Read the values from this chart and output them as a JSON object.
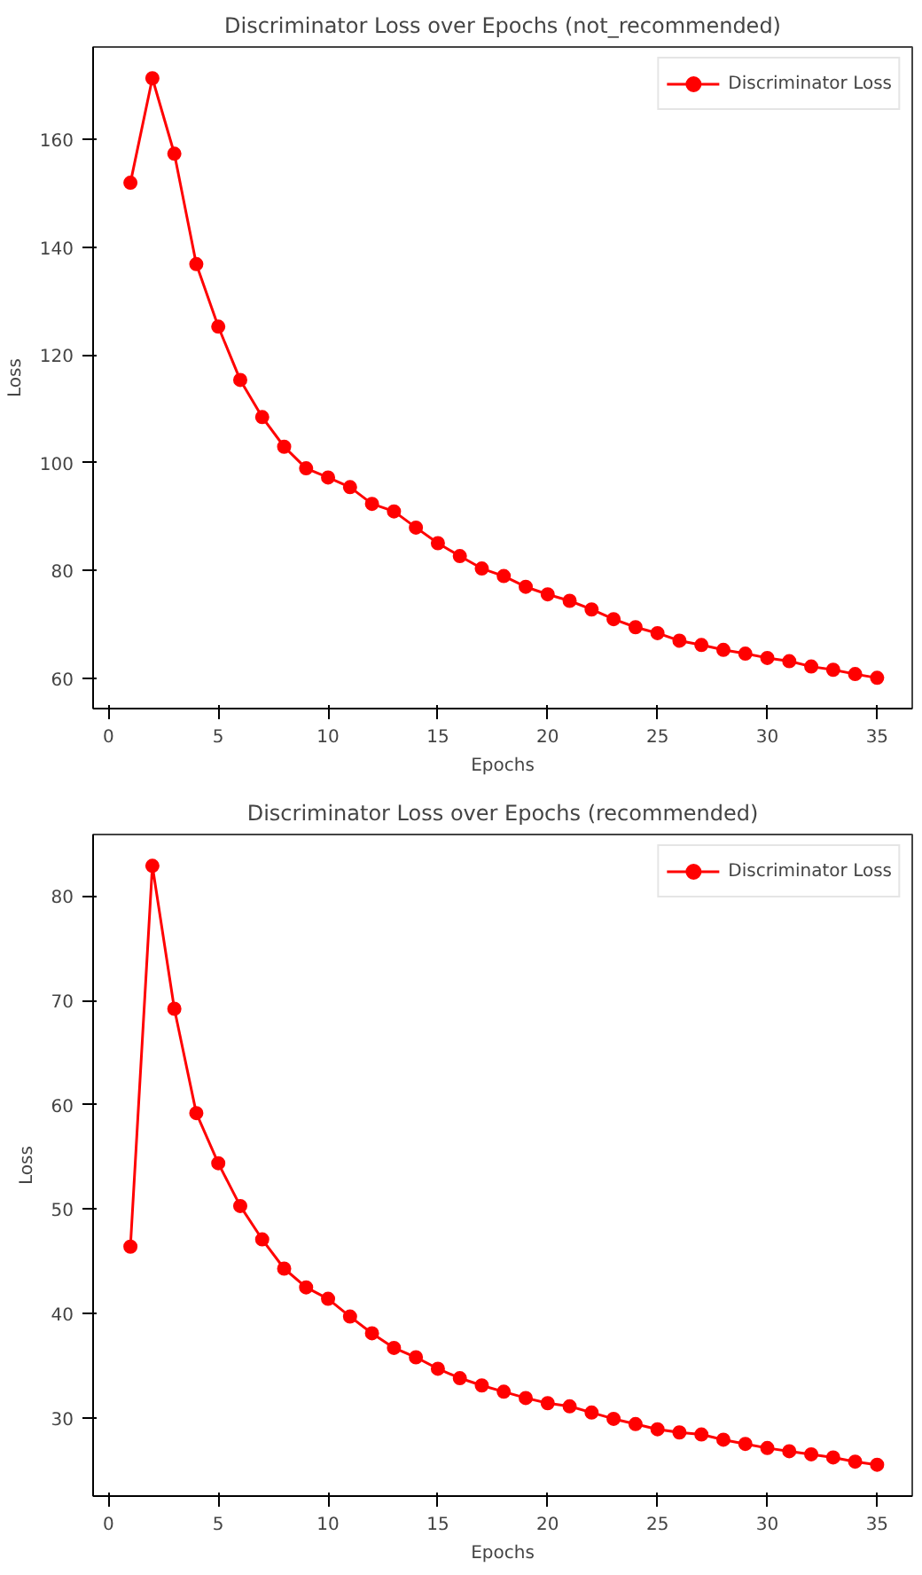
{
  "chart_data": [
    {
      "type": "line",
      "title": "Discriminator Loss over Epochs (not_recommended)",
      "xlabel": "Epochs",
      "ylabel": "Loss",
      "x": [
        1,
        2,
        3,
        4,
        5,
        6,
        7,
        8,
        9,
        10,
        11,
        12,
        13,
        14,
        15,
        16,
        17,
        18,
        19,
        20,
        21,
        22,
        23,
        24,
        25,
        26,
        27,
        28,
        29,
        30,
        31,
        32,
        33,
        34,
        35
      ],
      "series": [
        {
          "name": "Discriminator Loss",
          "color": "#ff0000",
          "values": [
            152.0,
            171.4,
            157.4,
            136.9,
            125.3,
            115.4,
            108.5,
            103.0,
            99.0,
            97.3,
            95.5,
            92.4,
            91.0,
            88.0,
            85.1,
            82.7,
            80.4,
            79.0,
            77.0,
            75.6,
            74.4,
            72.8,
            71.0,
            69.5,
            68.4,
            67.0,
            66.2,
            65.3,
            64.6,
            63.8,
            63.2,
            62.2,
            61.6,
            60.8,
            60.1
          ]
        }
      ],
      "xlim": [
        -0.7,
        36.6
      ],
      "xticks": [
        0,
        5,
        10,
        15,
        20,
        25,
        30,
        35
      ],
      "ylim": [
        54.4,
        177.2
      ],
      "yticks": [
        60,
        80,
        100,
        120,
        140,
        160
      ],
      "legend": "top right",
      "marker": "circle",
      "line_style": "solid",
      "grid": false
    },
    {
      "type": "line",
      "title": "Discriminator Loss over Epochs (recommended)",
      "xlabel": "Epochs",
      "ylabel": "Loss",
      "x": [
        1,
        2,
        3,
        4,
        5,
        6,
        7,
        8,
        9,
        10,
        11,
        12,
        13,
        14,
        15,
        16,
        17,
        18,
        19,
        20,
        21,
        22,
        23,
        24,
        25,
        26,
        27,
        28,
        29,
        30,
        31,
        32,
        33,
        34,
        35
      ],
      "series": [
        {
          "name": "Discriminator Loss",
          "color": "#ff0000",
          "values": [
            46.4,
            82.9,
            69.2,
            59.2,
            54.4,
            50.3,
            47.1,
            44.3,
            42.5,
            41.4,
            39.7,
            38.1,
            36.7,
            35.8,
            34.7,
            33.8,
            33.1,
            32.5,
            31.9,
            31.4,
            31.1,
            30.5,
            29.9,
            29.4,
            28.9,
            28.6,
            28.4,
            27.9,
            27.5,
            27.1,
            26.8,
            26.5,
            26.2,
            25.8,
            25.5
          ]
        }
      ],
      "xlim": [
        -0.7,
        36.6
      ],
      "xticks": [
        0,
        5,
        10,
        15,
        20,
        25,
        30,
        35
      ],
      "ylim": [
        22.5,
        85.9
      ],
      "yticks": [
        30,
        40,
        50,
        60,
        70,
        80
      ],
      "legend": "top right",
      "marker": "circle",
      "line_style": "solid",
      "grid": false
    }
  ]
}
